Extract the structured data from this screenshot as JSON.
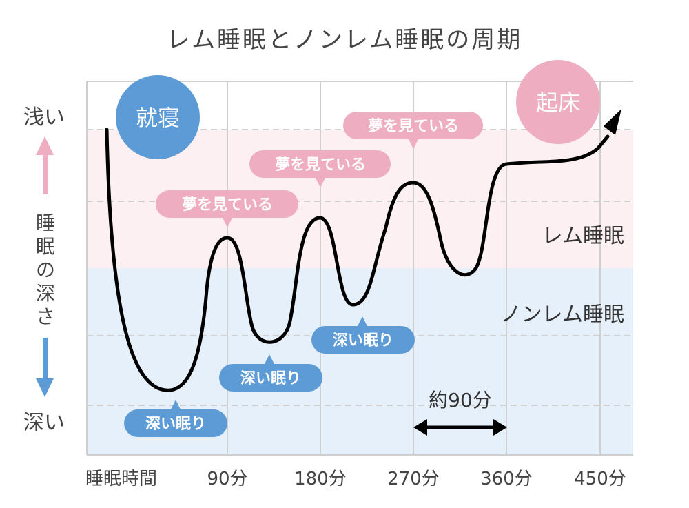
{
  "title": "レム睡眠とノンレム睡眠の周期",
  "y_axis": {
    "top_label": "浅い",
    "bottom_label": "深い",
    "middle_label": [
      "睡",
      "眠",
      "の",
      "深",
      "さ"
    ]
  },
  "x_axis": {
    "ticks": [
      "睡眠時間",
      "90分",
      "180分",
      "270分",
      "360分",
      "450分"
    ]
  },
  "zones": {
    "rem": "レム睡眠",
    "nonrem": "ノンレム睡眠"
  },
  "circles": {
    "sleep": "就寝",
    "wake": "起床"
  },
  "callouts": {
    "dream": [
      "夢を見ている",
      "夢を見ている",
      "夢を見ている"
    ],
    "deep": [
      "深い眠り",
      "深い眠り",
      "深い眠り"
    ]
  },
  "cycle_label": "約90分",
  "colors": {
    "rem_bg": "#fdf0f3",
    "nonrem_bg": "#e6f0fb",
    "pink": "#eeadc0",
    "blue": "#5d9bd6",
    "grid": "#cfcfcf",
    "curve": "#000000"
  }
}
